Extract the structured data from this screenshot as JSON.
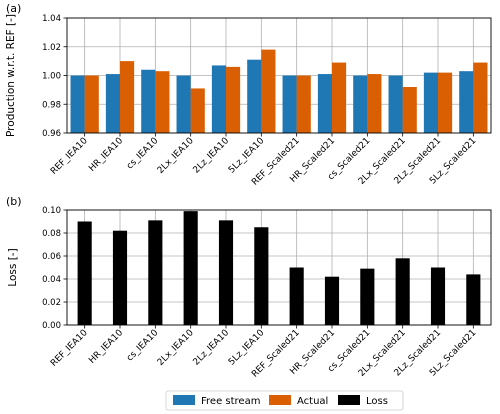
{
  "chart_data": [
    {
      "type": "bar",
      "panel_label": "(a)",
      "categories": [
        "REF_IEA10",
        "HR_IEA10",
        "cs_IEA10",
        "2Lx_IEA10",
        "2Lz_IEA10",
        "5Lz_IEA10",
        "REF_Scaled21",
        "HR_Scaled21",
        "cs_Scaled21",
        "2Lx_Scaled21",
        "2Lz_Scaled21",
        "5Lz_Scaled21"
      ],
      "series": [
        {
          "name": "Free stream",
          "color": "#1f77b4",
          "values": [
            1.0,
            1.001,
            1.004,
            1.0,
            1.007,
            1.011,
            1.0,
            1.001,
            1.0,
            1.0,
            1.002,
            1.003
          ]
        },
        {
          "name": "Actual",
          "color": "#d95f02",
          "values": [
            1.0,
            1.01,
            1.003,
            0.991,
            1.006,
            1.018,
            1.0,
            1.009,
            1.001,
            0.992,
            1.002,
            1.009
          ]
        }
      ],
      "ylabel": "Production w.r.t. REF [-]",
      "ylim": [
        0.96,
        1.04
      ],
      "yticks": [
        "0.96",
        "0.98",
        "1.00",
        "1.02",
        "1.04"
      ],
      "grid": true
    },
    {
      "type": "bar",
      "panel_label": "(b)",
      "categories": [
        "REF_IEA10",
        "HR_IEA10",
        "cs_IEA10",
        "2Lx_IEA10",
        "2Lz_IEA10",
        "5Lz_IEA10",
        "REF_Scaled21",
        "HR_Scaled21",
        "cs_Scaled21",
        "2Lx_Scaled21",
        "2Lz_Scaled21",
        "5Lz_Scaled21"
      ],
      "series": [
        {
          "name": "Loss",
          "color": "#000000",
          "values": [
            0.09,
            0.082,
            0.091,
            0.099,
            0.091,
            0.085,
            0.05,
            0.042,
            0.049,
            0.058,
            0.05,
            0.044
          ]
        }
      ],
      "ylabel": "Loss [-]",
      "ylim": [
        0.0,
        0.1
      ],
      "yticks": [
        "0.00",
        "0.02",
        "0.04",
        "0.06",
        "0.08",
        "0.10"
      ],
      "grid": true
    }
  ],
  "legend": {
    "placement": "bottom-center",
    "items": [
      {
        "label": "Free stream",
        "color": "#1f77b4"
      },
      {
        "label": "Actual",
        "color": "#d95f02"
      },
      {
        "label": "Loss",
        "color": "#000000"
      }
    ]
  }
}
